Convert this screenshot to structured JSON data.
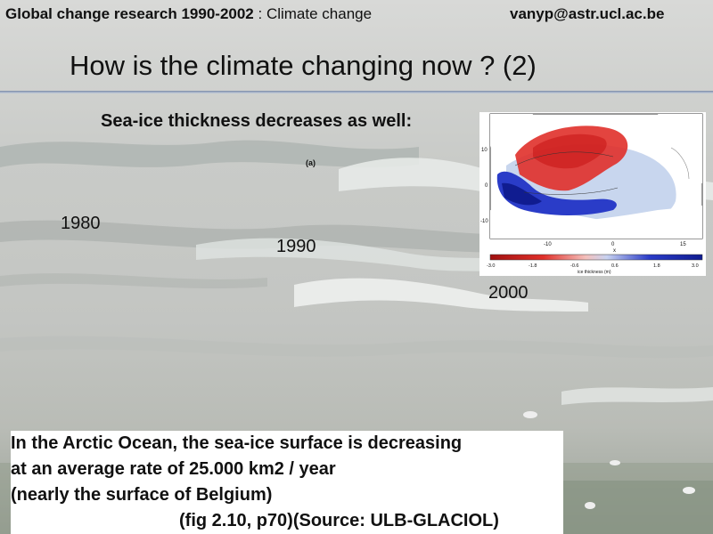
{
  "header": {
    "left_bold": "Global change research 1990-2002",
    "separator": " : ",
    "left_normal": "Climate change",
    "email": "vanyp@astr.ucl.ac.be"
  },
  "title": "How is the climate changing now ? (2)",
  "subtitle": "Sea-ice thickness decreases as well:",
  "panel_label": "(a)",
  "years": [
    "1980",
    "1990",
    "2000"
  ],
  "figure": {
    "y_ticks": [
      "10",
      "0",
      "-10"
    ],
    "x_ticks": [
      "-10",
      "0",
      "15"
    ],
    "x_label": "x",
    "colorbar_ticks": [
      "-3.0",
      "-1.8",
      "-0.6",
      "0.6",
      "1.8",
      "3.0"
    ],
    "colorbar_label": "ice thickness (m)",
    "colors": {
      "neg": "#e0302a",
      "pos": "#2a3cc8",
      "land": "#ffffff"
    }
  },
  "caption": [
    "In the Arctic Ocean, the sea-ice surface is decreasing",
    "at an average rate of 25.000 km2 / year",
    "(nearly the surface of Belgium)",
    "(fig 2.10, p70)(Source: ULB-GLACIOL)"
  ]
}
